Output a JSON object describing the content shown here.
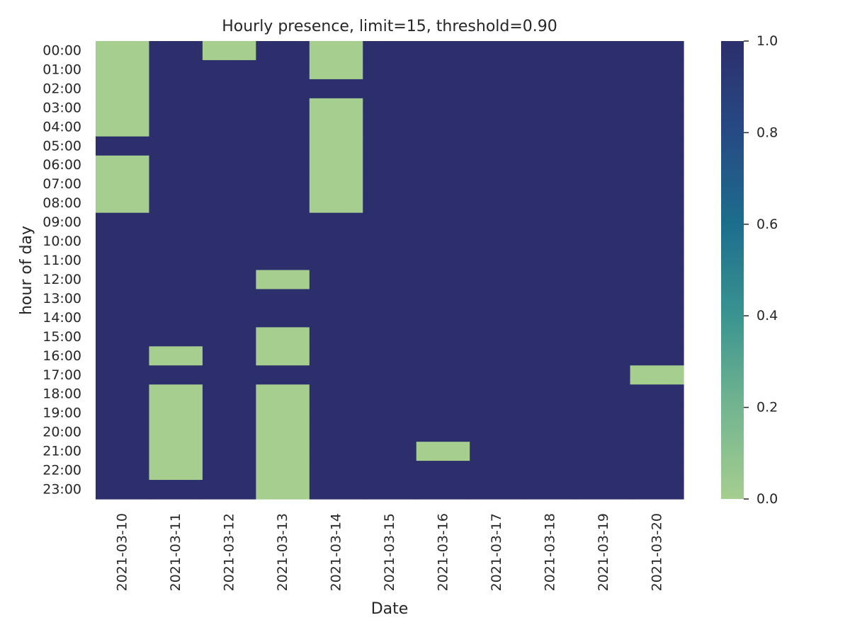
{
  "chart_data": {
    "type": "heatmap",
    "title": "Hourly presence, limit=15, threshold=0.90",
    "xlabel": "Date",
    "ylabel": "hour of day",
    "x": [
      "2021-03-10",
      "2021-03-11",
      "2021-03-12",
      "2021-03-13",
      "2021-03-14",
      "2021-03-15",
      "2021-03-16",
      "2021-03-17",
      "2021-03-18",
      "2021-03-19",
      "2021-03-20"
    ],
    "y": [
      "00:00",
      "01:00",
      "02:00",
      "03:00",
      "04:00",
      "05:00",
      "06:00",
      "07:00",
      "08:00",
      "09:00",
      "10:00",
      "11:00",
      "12:00",
      "13:00",
      "14:00",
      "15:00",
      "16:00",
      "17:00",
      "18:00",
      "19:00",
      "20:00",
      "21:00",
      "22:00",
      "23:00"
    ],
    "values": [
      [
        0,
        1,
        0,
        1,
        0,
        1,
        1,
        1,
        1,
        1,
        1
      ],
      [
        0,
        1,
        1,
        1,
        0,
        1,
        1,
        1,
        1,
        1,
        1
      ],
      [
        0,
        1,
        1,
        1,
        1,
        1,
        1,
        1,
        1,
        1,
        1
      ],
      [
        0,
        1,
        1,
        1,
        0,
        1,
        1,
        1,
        1,
        1,
        1
      ],
      [
        0,
        1,
        1,
        1,
        0,
        1,
        1,
        1,
        1,
        1,
        1
      ],
      [
        1,
        1,
        1,
        1,
        0,
        1,
        1,
        1,
        1,
        1,
        1
      ],
      [
        0,
        1,
        1,
        1,
        0,
        1,
        1,
        1,
        1,
        1,
        1
      ],
      [
        0,
        1,
        1,
        1,
        0,
        1,
        1,
        1,
        1,
        1,
        1
      ],
      [
        0,
        1,
        1,
        1,
        0,
        1,
        1,
        1,
        1,
        1,
        1
      ],
      [
        1,
        1,
        1,
        1,
        1,
        1,
        1,
        1,
        1,
        1,
        1
      ],
      [
        1,
        1,
        1,
        1,
        1,
        1,
        1,
        1,
        1,
        1,
        1
      ],
      [
        1,
        1,
        1,
        1,
        1,
        1,
        1,
        1,
        1,
        1,
        1
      ],
      [
        1,
        1,
        1,
        0,
        1,
        1,
        1,
        1,
        1,
        1,
        1
      ],
      [
        1,
        1,
        1,
        1,
        1,
        1,
        1,
        1,
        1,
        1,
        1
      ],
      [
        1,
        1,
        1,
        1,
        1,
        1,
        1,
        1,
        1,
        1,
        1
      ],
      [
        1,
        1,
        1,
        0,
        1,
        1,
        1,
        1,
        1,
        1,
        1
      ],
      [
        1,
        0,
        1,
        0,
        1,
        1,
        1,
        1,
        1,
        1,
        1
      ],
      [
        1,
        1,
        1,
        1,
        1,
        1,
        1,
        1,
        1,
        1,
        0
      ],
      [
        1,
        0,
        1,
        0,
        1,
        1,
        1,
        1,
        1,
        1,
        1
      ],
      [
        1,
        0,
        1,
        0,
        1,
        1,
        1,
        1,
        1,
        1,
        1
      ],
      [
        1,
        0,
        1,
        0,
        1,
        1,
        1,
        1,
        1,
        1,
        1
      ],
      [
        1,
        0,
        1,
        0,
        1,
        1,
        0,
        1,
        1,
        1,
        1
      ],
      [
        1,
        0,
        1,
        0,
        1,
        1,
        1,
        1,
        1,
        1,
        1
      ],
      [
        1,
        1,
        1,
        0,
        1,
        1,
        1,
        1,
        1,
        1,
        1
      ]
    ],
    "zlim": [
      0,
      1
    ],
    "colorbar": {
      "ticks": [
        "0.0",
        "0.2",
        "0.4",
        "0.6",
        "0.8",
        "1.0"
      ],
      "tick_values": [
        0,
        0.2,
        0.4,
        0.6,
        0.8,
        1.0
      ],
      "colors": [
        "#a5ce8f",
        "#73b590",
        "#3a9490",
        "#1c6e8d",
        "#264a84",
        "#2c2f6c"
      ],
      "color_stops": [
        0,
        0.2,
        0.4,
        0.6,
        0.8,
        1.0
      ]
    },
    "legend": "colorbar-right",
    "grid": false
  }
}
